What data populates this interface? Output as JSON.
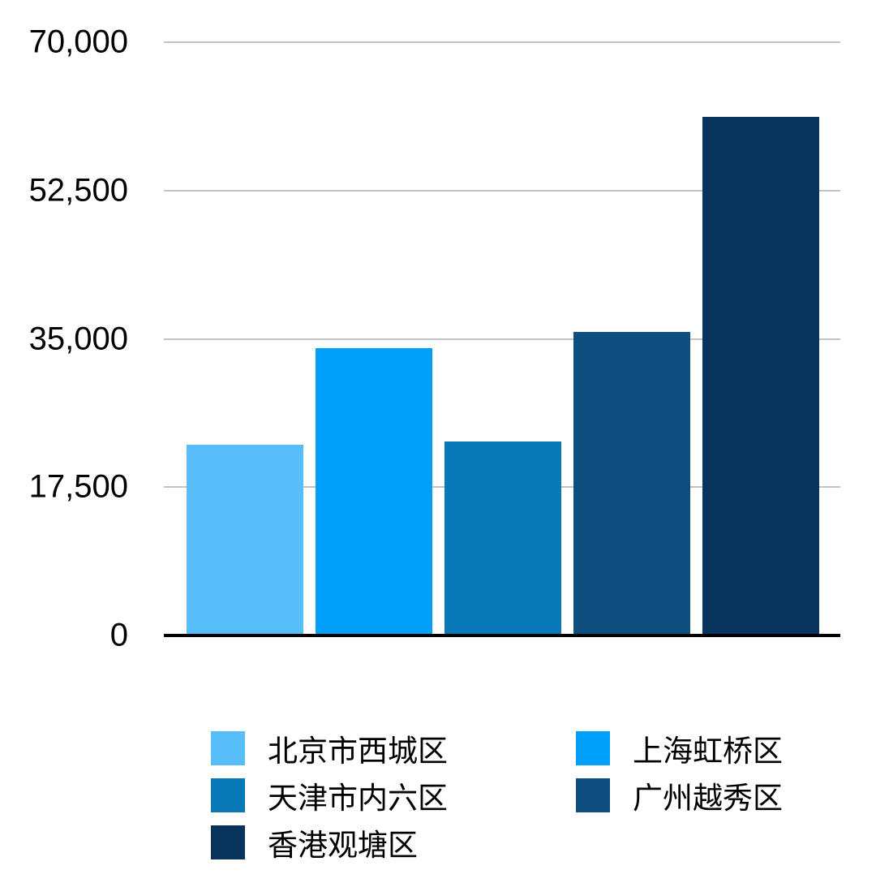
{
  "page": {
    "background": "#ffffff",
    "text_color": "#000000",
    "gridline_color": "#c4c4c4",
    "axis_line_color": "#000000"
  },
  "chart_data": {
    "type": "bar",
    "title": "",
    "xlabel": "",
    "ylabel": "",
    "categories": [
      "北京市西城区",
      "上海虹桥区",
      "天津市内六区",
      "广州越秀区",
      "香港观塘区"
    ],
    "values": [
      22500,
      33900,
      22900,
      35800,
      61200
    ],
    "colors": [
      "#57BDF8",
      "#00A0FA",
      "#0878B7",
      "#0E4F7F",
      "#07335C"
    ],
    "ylim": [
      0,
      70000
    ],
    "grid": true,
    "legend_position": "bottom",
    "y_ticks": [
      {
        "value": 0,
        "label": "0"
      },
      {
        "value": 17500,
        "label": "17,500"
      },
      {
        "value": 35000,
        "label": "35,000"
      },
      {
        "value": 52500,
        "label": "52,500"
      },
      {
        "value": 70000,
        "label": "70,000"
      }
    ],
    "legend": [
      {
        "label": "北京市西城区",
        "color": "#57BDF8"
      },
      {
        "label": "上海虹桥区",
        "color": "#00A0FA"
      },
      {
        "label": "天津市内六区",
        "color": "#0878B7"
      },
      {
        "label": "广州越秀区",
        "color": "#0E4F7F"
      },
      {
        "label": "香港观塘区",
        "color": "#07335C"
      }
    ]
  }
}
